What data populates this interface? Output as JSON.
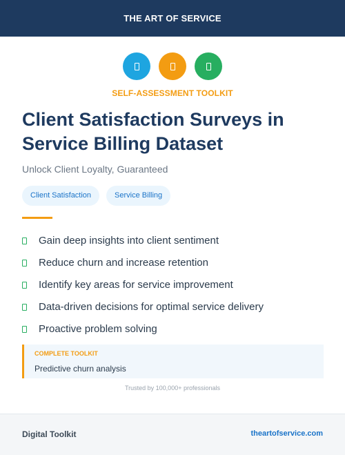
{
  "header": {
    "brand": "THE ART OF SERVICE"
  },
  "icons": [
    {
      "name": "document-icon",
      "color": "#1ea5e0"
    },
    {
      "name": "document-icon",
      "color": "#f39c12"
    },
    {
      "name": "document-icon",
      "color": "#27ae60"
    }
  ],
  "kicker": "SELF-ASSESSMENT TOOLKIT",
  "title": "Client Satisfaction Surveys in Service Billing Dataset",
  "subtitle": "Unlock Client Loyalty, Guaranteed",
  "tags": [
    "Client Satisfaction",
    "Service Billing"
  ],
  "benefits": [
    "Gain deep insights into client sentiment",
    "Reduce churn and increase retention",
    "Identify key areas for service improvement",
    "Data-driven decisions for optimal service delivery",
    "Proactive problem solving"
  ],
  "callout": {
    "label": "COMPLETE TOOLKIT",
    "text": "Predictive churn analysis"
  },
  "trusted": "Trusted by 100,000+ professionals",
  "footer": {
    "left": "Digital Toolkit",
    "right": "theartofservice.com"
  },
  "colors": {
    "navy": "#1e3a5f",
    "accent": "#f39c12",
    "link": "#1a73c8",
    "check": "#27ae60"
  }
}
